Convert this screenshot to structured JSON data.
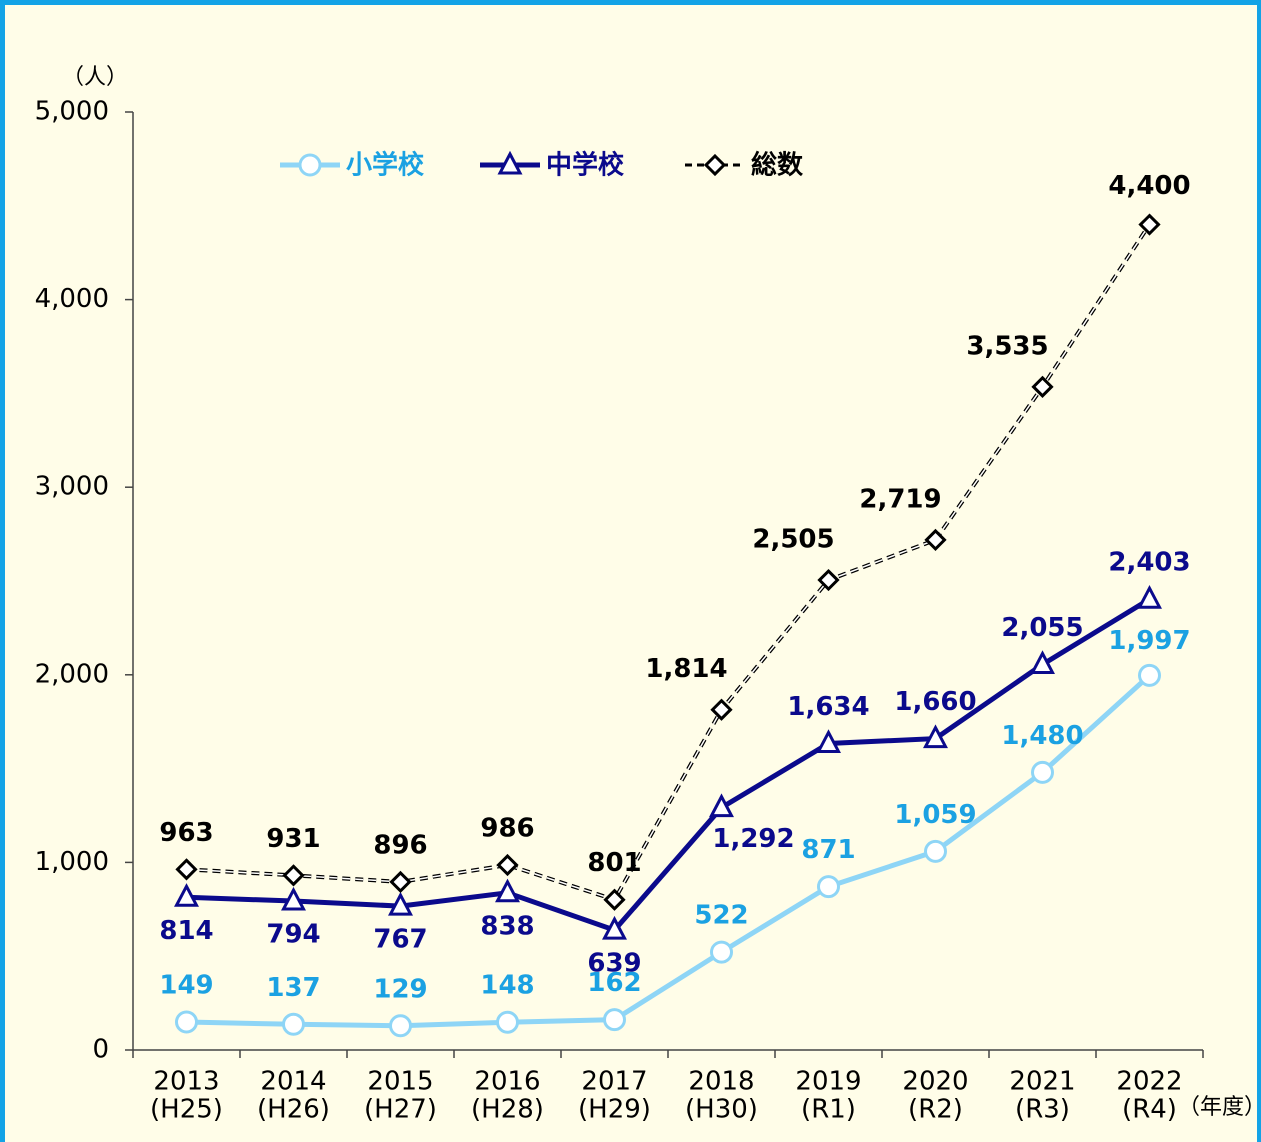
{
  "chart_data": {
    "type": "line",
    "y_unit": "（人）",
    "x_unit": "（年度）",
    "categories": [
      "2013",
      "2014",
      "2015",
      "2016",
      "2017",
      "2018",
      "2019",
      "2020",
      "2021",
      "2022"
    ],
    "era_labels": [
      "(H25)",
      "(H26)",
      "(H27)",
      "(H28)",
      "(H29)",
      "(H30)",
      "(R1)",
      "(R2)",
      "(R3)",
      "(R4)"
    ],
    "ylim": [
      0,
      5000
    ],
    "yticks": [
      0,
      {
        "value": 1000,
        "label": "1,000"
      },
      {
        "value": 2000,
        "label": "2,000"
      },
      {
        "value": 3000,
        "label": "3,000"
      },
      {
        "value": 4000,
        "label": "4,000"
      },
      {
        "value": 5000,
        "label": "5,000"
      }
    ],
    "grid": false,
    "legend": "top-left",
    "series": [
      {
        "name": "小学校",
        "color": "#8ed5f6",
        "label_color": "#1ba1e2",
        "marker": "circle",
        "dash": false,
        "values": [
          149,
          137,
          129,
          148,
          162,
          522,
          871,
          1059,
          1480,
          1997
        ],
        "value_labels": [
          "149",
          "137",
          "129",
          "148",
          "162",
          "522",
          "871",
          "1,059",
          "1,480",
          "1,997"
        ]
      },
      {
        "name": "中学校",
        "color": "#0b0a8c",
        "label_color": "#0b0a8c",
        "marker": "triangle",
        "dash": false,
        "values": [
          814,
          794,
          767,
          838,
          639,
          1292,
          1634,
          1660,
          2055,
          2403
        ],
        "value_labels": [
          "814",
          "794",
          "767",
          "838",
          "639",
          "1,292",
          "1,634",
          "1,660",
          "2,055",
          "2,403"
        ]
      },
      {
        "name": "総数",
        "color": "#000000",
        "label_color": "#000000",
        "marker": "diamond",
        "dash": true,
        "values": [
          963,
          931,
          896,
          986,
          801,
          1814,
          2505,
          2719,
          3535,
          4400
        ],
        "value_labels": [
          "963",
          "931",
          "896",
          "986",
          "801",
          "1,814",
          "2,505",
          "2,719",
          "3,535",
          "4,400"
        ]
      }
    ]
  }
}
